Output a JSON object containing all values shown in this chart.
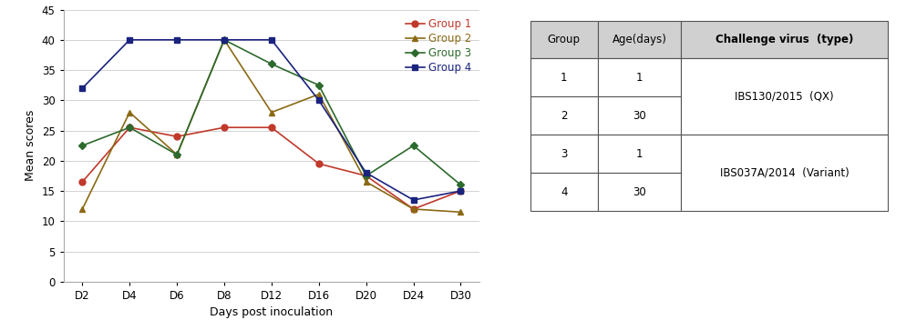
{
  "x_labels": [
    "D2",
    "D4",
    "D6",
    "D8",
    "D12",
    "D16",
    "D20",
    "D24",
    "D30"
  ],
  "x_values": [
    0,
    1,
    2,
    3,
    4,
    5,
    6,
    7,
    8
  ],
  "group1": [
    16.5,
    25.5,
    24.0,
    25.5,
    25.5,
    19.5,
    17.5,
    12.0,
    15.0
  ],
  "group2": [
    12.0,
    28.0,
    21.0,
    40.0,
    28.0,
    31.0,
    16.5,
    12.0,
    11.5
  ],
  "group3": [
    22.5,
    25.5,
    21.0,
    40.0,
    36.0,
    32.5,
    17.5,
    22.5,
    16.0
  ],
  "group4": [
    32.0,
    40.0,
    40.0,
    40.0,
    40.0,
    30.0,
    18.0,
    13.5,
    15.0
  ],
  "color1": "#c0392b",
  "color2": "#8B6914",
  "color3": "#2d6a2d",
  "color4": "#1a237e",
  "ylabel": "Mean scores",
  "xlabel": "Days post inoculation",
  "ylim": [
    0,
    45
  ],
  "yticks": [
    0,
    5,
    10,
    15,
    20,
    25,
    30,
    35,
    40,
    45
  ],
  "legend_labels": [
    "Group 1",
    "Group 2",
    "Group 3",
    "Group 4"
  ],
  "table_headers": [
    "Group",
    "Age(days)",
    "Challenge virus  (type)"
  ],
  "bg_color": "#ffffff"
}
